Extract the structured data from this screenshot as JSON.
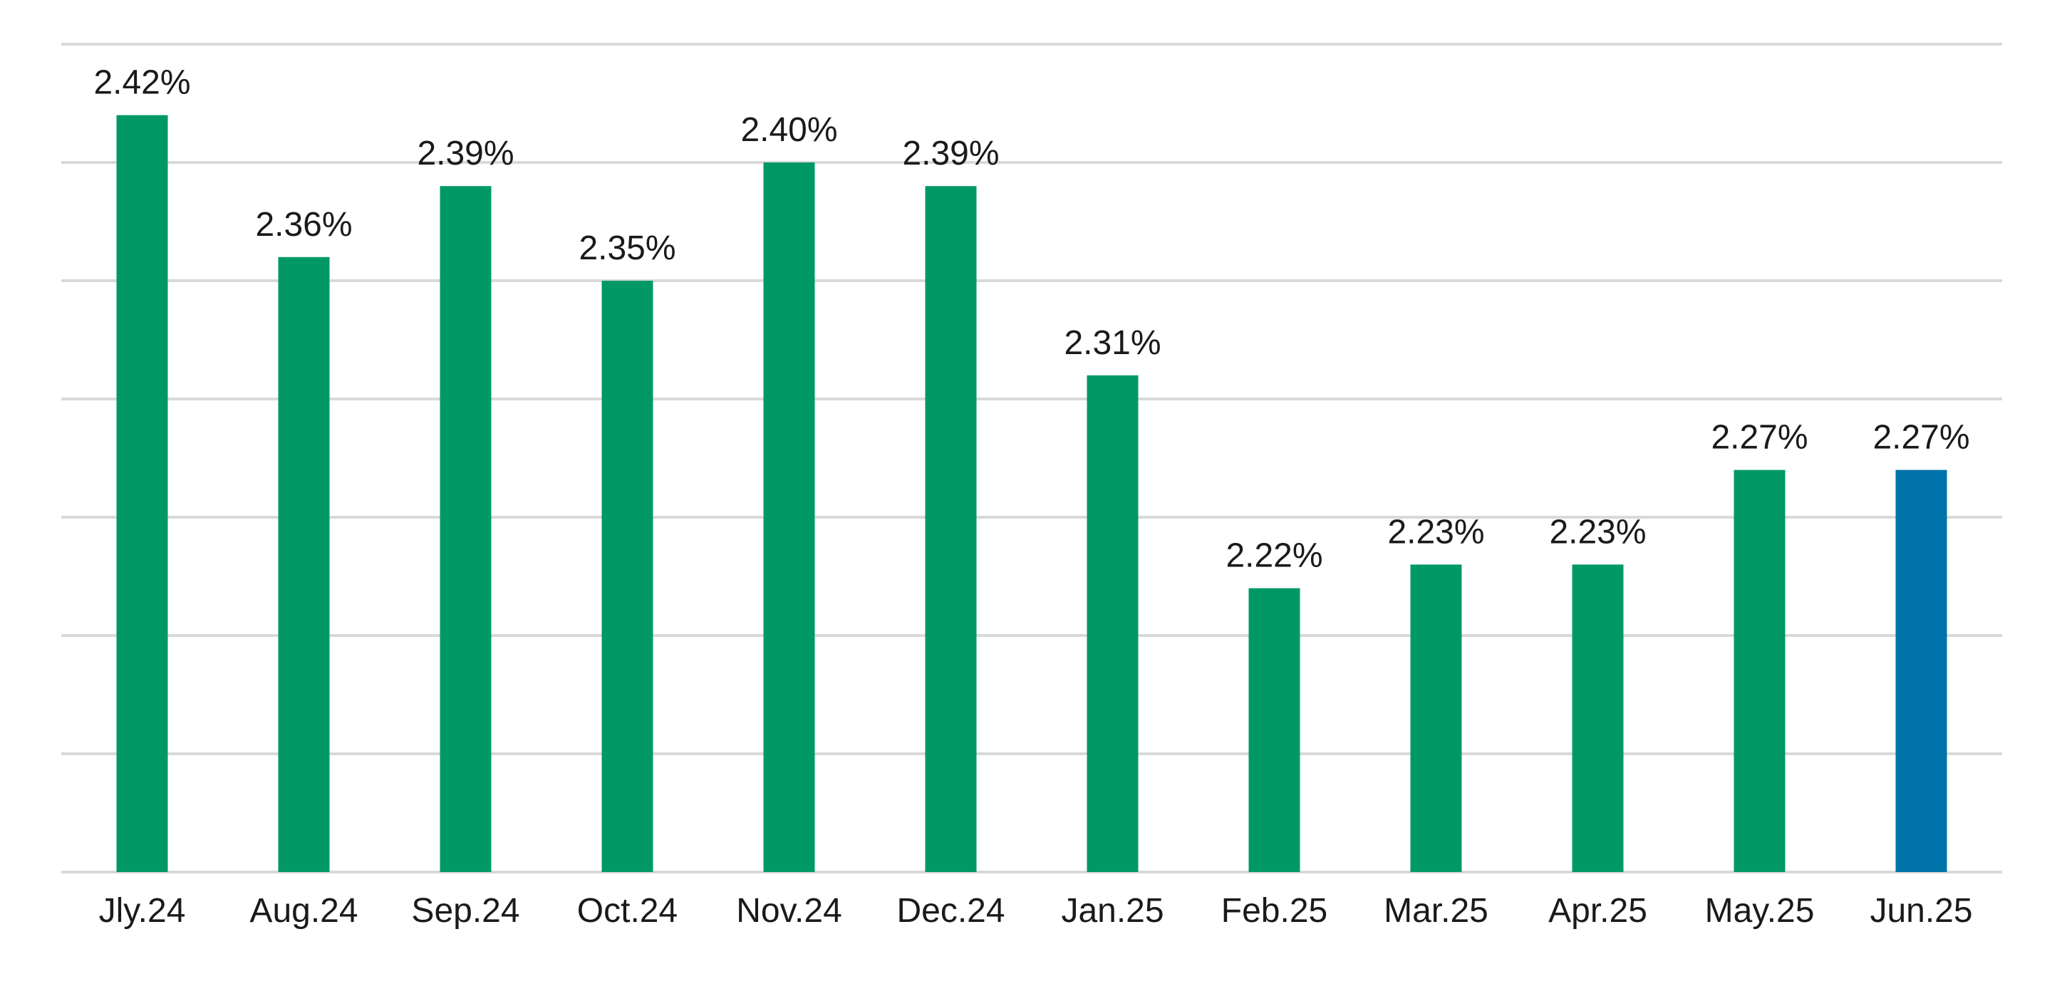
{
  "chart_data": {
    "type": "bar",
    "title": "",
    "xlabel": "",
    "ylabel": "",
    "categories": [
      "Jly.24",
      "Aug.24",
      "Sep.24",
      "Oct.24",
      "Nov.24",
      "Dec.24",
      "Jan.25",
      "Feb.25",
      "Mar.25",
      "Apr.25",
      "May.25",
      "Jun.25"
    ],
    "values": [
      2.42,
      2.36,
      2.39,
      2.35,
      2.4,
      2.39,
      2.31,
      2.22,
      2.23,
      2.23,
      2.27,
      2.27
    ],
    "data_labels": [
      "2.42%",
      "2.36%",
      "2.39%",
      "2.35%",
      "2.40%",
      "2.39%",
      "2.31%",
      "2.22%",
      "2.23%",
      "2.23%",
      "2.27%",
      "2.27%"
    ],
    "ylim": [
      2.1,
      2.45
    ],
    "grid": true,
    "y_axis_labels_shown": false,
    "bar_colors": [
      "#009966",
      "#009966",
      "#009966",
      "#009966",
      "#009966",
      "#009966",
      "#009966",
      "#009966",
      "#009966",
      "#009966",
      "#009966",
      "#0073AA"
    ]
  }
}
